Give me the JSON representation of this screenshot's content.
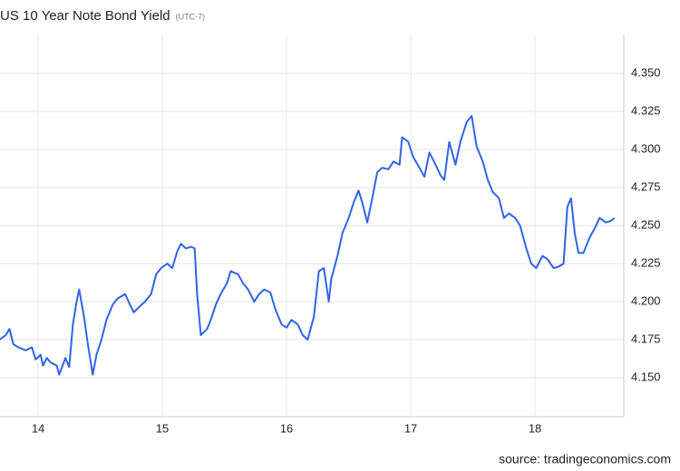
{
  "chart_data": {
    "type": "line",
    "title": "US 10 Year Note Bond Yield",
    "subtitle": "(UTC-7)",
    "source": "source: tradingeconomics.com",
    "x": [
      13.69,
      13.74,
      13.77,
      13.8,
      13.84,
      13.9,
      13.95,
      13.98,
      14.02,
      14.04,
      14.07,
      14.1,
      14.15,
      14.17,
      14.22,
      14.25,
      14.28,
      14.31,
      14.33,
      14.37,
      14.4,
      14.44,
      14.47,
      14.51,
      14.55,
      14.6,
      14.64,
      14.7,
      14.74,
      14.77,
      14.82,
      14.86,
      14.91,
      14.95,
      14.99,
      15.04,
      15.08,
      15.12,
      15.15,
      15.19,
      15.23,
      15.26,
      15.28,
      15.31,
      15.36,
      15.39,
      15.43,
      15.47,
      15.52,
      15.55,
      15.61,
      15.65,
      15.69,
      15.74,
      15.78,
      15.82,
      15.87,
      15.91,
      15.96,
      16.0,
      16.04,
      16.09,
      16.13,
      16.17,
      16.22,
      16.26,
      16.3,
      16.34,
      16.36,
      16.41,
      16.45,
      16.5,
      16.54,
      16.58,
      16.61,
      16.65,
      16.69,
      16.73,
      16.77,
      16.82,
      16.86,
      16.91,
      16.93,
      16.98,
      17.02,
      17.07,
      17.11,
      17.15,
      17.2,
      17.24,
      17.27,
      17.31,
      17.36,
      17.4,
      17.45,
      17.49,
      17.53,
      17.58,
      17.62,
      17.66,
      17.71,
      17.75,
      17.79,
      17.84,
      17.88,
      17.93,
      17.97,
      18.01,
      18.06,
      18.1,
      18.15,
      18.19,
      18.23,
      18.26,
      18.29,
      18.32,
      18.35,
      18.39,
      18.44,
      18.48,
      18.52,
      18.57,
      18.61,
      18.64
    ],
    "series": [
      {
        "name": "US 10 Year Note Bond Yield",
        "color": "#2f64e8",
        "values": [
          4.175,
          4.178,
          4.182,
          4.172,
          4.17,
          4.168,
          4.17,
          4.162,
          4.165,
          4.158,
          4.163,
          4.16,
          4.158,
          4.152,
          4.163,
          4.157,
          4.185,
          4.2,
          4.208,
          4.19,
          4.172,
          4.152,
          4.165,
          4.175,
          4.188,
          4.198,
          4.202,
          4.205,
          4.198,
          4.193,
          4.197,
          4.2,
          4.205,
          4.218,
          4.222,
          4.225,
          4.222,
          4.233,
          4.238,
          4.235,
          4.236,
          4.235,
          4.205,
          4.178,
          4.182,
          4.188,
          4.198,
          4.205,
          4.212,
          4.22,
          4.218,
          4.212,
          4.208,
          4.2,
          4.205,
          4.208,
          4.206,
          4.195,
          4.185,
          4.183,
          4.188,
          4.185,
          4.178,
          4.175,
          4.19,
          4.22,
          4.222,
          4.2,
          4.215,
          4.23,
          4.245,
          4.255,
          4.265,
          4.273,
          4.265,
          4.252,
          4.268,
          4.285,
          4.288,
          4.287,
          4.292,
          4.29,
          4.308,
          4.305,
          4.295,
          4.288,
          4.282,
          4.298,
          4.29,
          4.283,
          4.28,
          4.305,
          4.29,
          4.305,
          4.318,
          4.322,
          4.302,
          4.292,
          4.28,
          4.272,
          4.268,
          4.255,
          4.258,
          4.255,
          4.25,
          4.235,
          4.225,
          4.222,
          4.23,
          4.228,
          4.222,
          4.223,
          4.225,
          4.262,
          4.268,
          4.245,
          4.232,
          4.232,
          4.242,
          4.248,
          4.255,
          4.252,
          4.253,
          4.255
        ]
      }
    ],
    "xlim": [
      13.693,
      18.715
    ],
    "xticks": [
      14,
      15,
      16,
      17,
      18
    ],
    "ylim": [
      4.1244,
      4.3756
    ],
    "yticks": [
      {
        "value": 4.15,
        "label": "4.150"
      },
      {
        "value": 4.175,
        "label": "4.175"
      },
      {
        "value": 4.2,
        "label": "4.200"
      },
      {
        "value": 4.225,
        "label": "4.225"
      },
      {
        "value": 4.25,
        "label": "4.250"
      },
      {
        "value": 4.275,
        "label": "4.275"
      },
      {
        "value": 4.3,
        "label": "4.300"
      },
      {
        "value": 4.325,
        "label": "4.325"
      },
      {
        "value": 4.35,
        "label": "4.350"
      }
    ],
    "grid": true
  }
}
